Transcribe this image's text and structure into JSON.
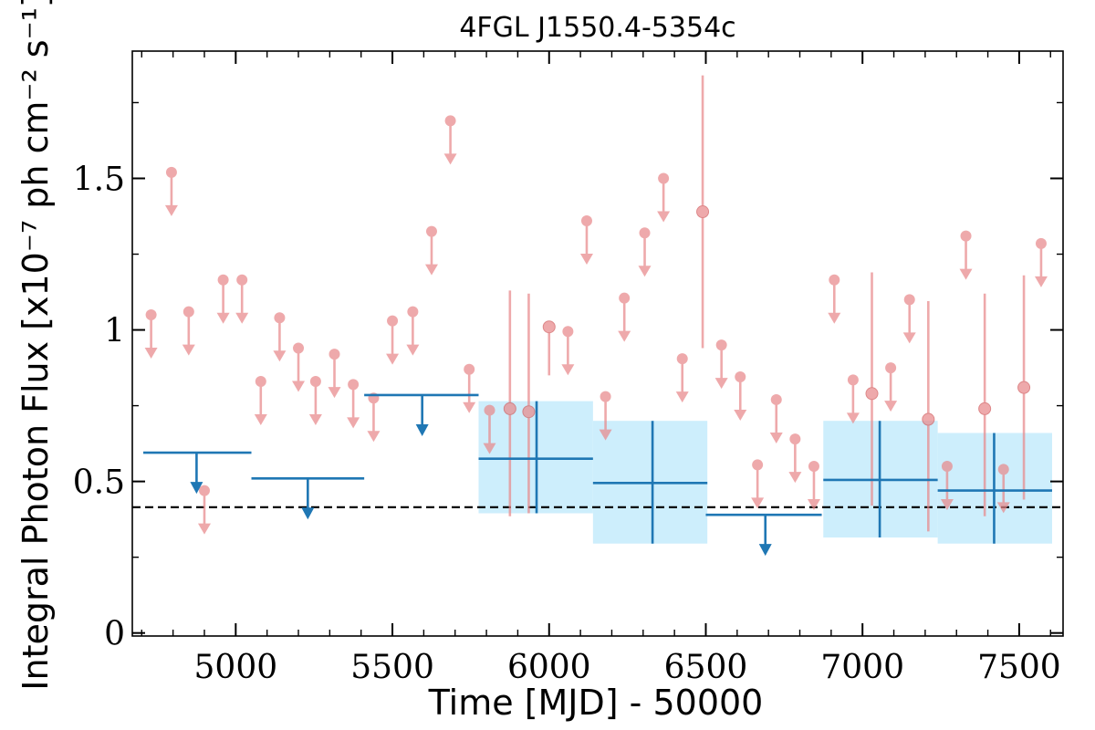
{
  "chart_data": {
    "type": "scatter",
    "title": "4FGL J1550.4-5354c",
    "xlabel": "Time [MJD] - 50000",
    "ylabel": "Integral Photon Flux [x10⁻⁷ ph cm⁻² s⁻¹]",
    "xlim": [
      4670,
      7640
    ],
    "ylim": [
      -0.01,
      1.92
    ],
    "xticks": [
      {
        "value": 5000,
        "label": "5000"
      },
      {
        "value": 5500,
        "label": "5500"
      },
      {
        "value": 6000,
        "label": "6000"
      },
      {
        "value": 6500,
        "label": "6500"
      },
      {
        "value": 7000,
        "label": "7000"
      },
      {
        "value": 7500,
        "label": "7500"
      }
    ],
    "yticks": [
      {
        "value": 0,
        "label": "0"
      },
      {
        "value": 0.5,
        "label": "0.5"
      },
      {
        "value": 1,
        "label": "1"
      },
      {
        "value": 1.5,
        "label": "1.5"
      }
    ],
    "grid": false,
    "reference_line": {
      "y": 0.415,
      "style": "dashed",
      "color": "#000000"
    },
    "colors": {
      "fine": "#e8898b",
      "coarse": "#1f77b4",
      "band": "#cdeefc"
    },
    "coarse_bins": {
      "upper_limits": [
        {
          "x_start": 4705,
          "x_end": 5050,
          "x_center": 4875,
          "ul": 0.595
        },
        {
          "x_start": 5050,
          "x_end": 5410,
          "x_center": 5230,
          "ul": 0.51
        },
        {
          "x_start": 5410,
          "x_end": 5775,
          "x_center": 5595,
          "ul": 0.785
        },
        {
          "x_start": 6500,
          "x_end": 6870,
          "x_center": 6690,
          "ul": 0.39
        }
      ],
      "detections": [
        {
          "x_start": 5775,
          "x_end": 6140,
          "x_center": 5960,
          "y": 0.575,
          "y_low": 0.395,
          "y_high": 0.765
        },
        {
          "x_start": 6140,
          "x_end": 6505,
          "x_center": 6330,
          "y": 0.495,
          "y_low": 0.295,
          "y_high": 0.7
        },
        {
          "x_start": 6875,
          "x_end": 7240,
          "x_center": 7055,
          "y": 0.505,
          "y_low": 0.315,
          "y_high": 0.7
        },
        {
          "x_start": 7240,
          "x_end": 7605,
          "x_center": 7420,
          "y": 0.47,
          "y_low": 0.295,
          "y_high": 0.66
        }
      ]
    },
    "fine_bins": {
      "upper_limits": [
        {
          "x": 4730,
          "ul": 1.05
        },
        {
          "x": 4795,
          "ul": 1.52
        },
        {
          "x": 4850,
          "ul": 1.06
        },
        {
          "x": 4900,
          "ul": 0.47
        },
        {
          "x": 4960,
          "ul": 1.165
        },
        {
          "x": 5020,
          "ul": 1.165
        },
        {
          "x": 5080,
          "ul": 0.83
        },
        {
          "x": 5140,
          "ul": 1.04
        },
        {
          "x": 5200,
          "ul": 0.94
        },
        {
          "x": 5255,
          "ul": 0.83
        },
        {
          "x": 5315,
          "ul": 0.92
        },
        {
          "x": 5375,
          "ul": 0.82
        },
        {
          "x": 5440,
          "ul": 0.775
        },
        {
          "x": 5500,
          "ul": 1.03
        },
        {
          "x": 5565,
          "ul": 1.06
        },
        {
          "x": 5625,
          "ul": 1.325
        },
        {
          "x": 5685,
          "ul": 1.69
        },
        {
          "x": 5745,
          "ul": 0.87
        },
        {
          "x": 5810,
          "ul": 0.735
        },
        {
          "x": 6060,
          "ul": 0.995
        },
        {
          "x": 6120,
          "ul": 1.36
        },
        {
          "x": 6180,
          "ul": 0.78
        },
        {
          "x": 6240,
          "ul": 1.105
        },
        {
          "x": 6305,
          "ul": 1.32
        },
        {
          "x": 6365,
          "ul": 1.5
        },
        {
          "x": 6425,
          "ul": 0.905
        },
        {
          "x": 6550,
          "ul": 0.95
        },
        {
          "x": 6610,
          "ul": 0.845
        },
        {
          "x": 6665,
          "ul": 0.555
        },
        {
          "x": 6725,
          "ul": 0.77
        },
        {
          "x": 6785,
          "ul": 0.64
        },
        {
          "x": 6845,
          "ul": 0.55
        },
        {
          "x": 6910,
          "ul": 1.165
        },
        {
          "x": 6970,
          "ul": 0.835
        },
        {
          "x": 7090,
          "ul": 0.875
        },
        {
          "x": 7150,
          "ul": 1.1
        },
        {
          "x": 7270,
          "ul": 0.55
        },
        {
          "x": 7330,
          "ul": 1.31
        },
        {
          "x": 7450,
          "ul": 0.54
        },
        {
          "x": 7570,
          "ul": 1.285
        }
      ],
      "detections": [
        {
          "x": 5875,
          "y": 0.74,
          "y_low": 0.385,
          "y_high": 1.13
        },
        {
          "x": 5935,
          "y": 0.73,
          "y_low": 0.395,
          "y_high": 1.12
        },
        {
          "x": 6000,
          "y": 1.01,
          "y_low": 0.85,
          "y_high": 1.01
        },
        {
          "x": 6490,
          "y": 1.39,
          "y_low": 0.94,
          "y_high": 1.84
        },
        {
          "x": 7030,
          "y": 0.79,
          "y_low": 0.42,
          "y_high": 1.19
        },
        {
          "x": 7210,
          "y": 0.705,
          "y_low": 0.335,
          "y_high": 1.095
        },
        {
          "x": 7390,
          "y": 0.74,
          "y_low": 0.385,
          "y_high": 1.12
        },
        {
          "x": 7515,
          "y": 0.81,
          "y_low": 0.44,
          "y_high": 1.18
        }
      ]
    }
  }
}
